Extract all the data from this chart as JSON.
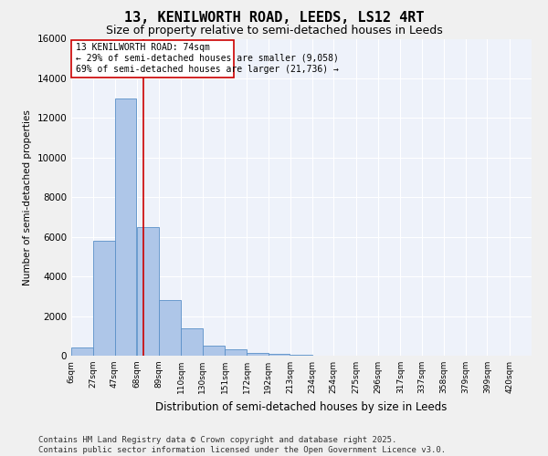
{
  "title": "13, KENILWORTH ROAD, LEEDS, LS12 4RT",
  "subtitle": "Size of property relative to semi-detached houses in Leeds",
  "xlabel": "Distribution of semi-detached houses by size in Leeds",
  "ylabel": "Number of semi-detached properties",
  "property_size": 74,
  "property_label": "13 KENILWORTH ROAD: 74sqm",
  "pct_smaller": 29,
  "pct_larger": 69,
  "n_smaller": 9058,
  "n_larger": 21736,
  "categories": [
    "6sqm",
    "27sqm",
    "47sqm",
    "68sqm",
    "89sqm",
    "110sqm",
    "130sqm",
    "151sqm",
    "172sqm",
    "192sqm",
    "213sqm",
    "234sqm",
    "254sqm",
    "275sqm",
    "296sqm",
    "317sqm",
    "337sqm",
    "358sqm",
    "379sqm",
    "399sqm",
    "420sqm"
  ],
  "bin_edges": [
    6,
    27,
    47,
    68,
    89,
    110,
    130,
    151,
    172,
    192,
    213,
    234,
    254,
    275,
    296,
    317,
    337,
    358,
    379,
    399,
    420
  ],
  "values": [
    400,
    5800,
    13000,
    6500,
    2800,
    1400,
    500,
    300,
    150,
    100,
    50,
    0,
    0,
    0,
    0,
    0,
    0,
    0,
    0,
    0
  ],
  "bar_color": "#aec6e8",
  "bar_edge_color": "#5a90c8",
  "red_line_color": "#cc0000",
  "annotation_box_color": "#cc0000",
  "background_color": "#eef2fa",
  "grid_color": "#ffffff",
  "ylim": [
    0,
    16000
  ],
  "yticks": [
    0,
    2000,
    4000,
    6000,
    8000,
    10000,
    12000,
    14000,
    16000
  ],
  "footer": "Contains HM Land Registry data © Crown copyright and database right 2025.\nContains public sector information licensed under the Open Government Licence v3.0.",
  "title_fontsize": 11,
  "subtitle_fontsize": 9,
  "annot_fontsize": 7,
  "footer_fontsize": 6.5
}
